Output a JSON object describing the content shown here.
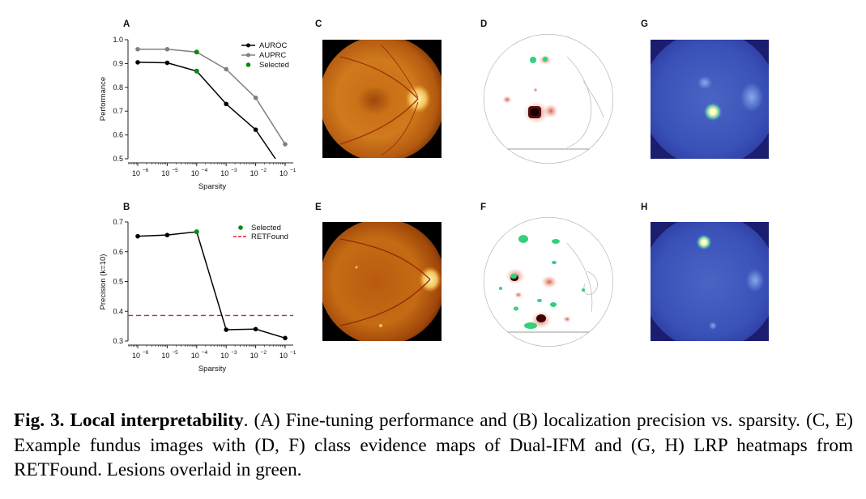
{
  "panel_letters": {
    "A": "A",
    "B": "B",
    "C": "C",
    "D": "D",
    "E": "E",
    "F": "F",
    "G": "G",
    "H": "H"
  },
  "chart_data": [
    {
      "panel": "A",
      "type": "line",
      "xlabel": "Sparsity",
      "ylabel": "Performance",
      "x_scale": "log",
      "x": [
        1e-06,
        1e-05,
        0.0001,
        0.001,
        0.01,
        0.1
      ],
      "x_tick_exponents": [
        "−6",
        "−5",
        "−4",
        "−3",
        "−2",
        "−1"
      ],
      "ylim": [
        0.5,
        1.0
      ],
      "y_ticks": [
        "0.5",
        "0.6",
        "0.7",
        "0.8",
        "0.9",
        "1.0"
      ],
      "series": [
        {
          "name": "AUROC",
          "color": "#000000",
          "values": [
            0.905,
            0.903,
            0.868,
            0.73,
            0.622,
            0.44
          ]
        },
        {
          "name": "AUPRC",
          "color": "#808080",
          "values": [
            0.96,
            0.96,
            0.948,
            0.876,
            0.756,
            0.561
          ]
        }
      ],
      "selected": [
        {
          "x": 0.0001,
          "y": 0.948
        },
        {
          "x": 0.0001,
          "y": 0.868
        }
      ],
      "legend": [
        "AUROC",
        "AUPRC",
        "Selected"
      ],
      "legend_position": "top-right",
      "selected_color": "#0a8a0a"
    },
    {
      "panel": "B",
      "type": "line",
      "xlabel": "Sparsity",
      "ylabel": "Precision (k=10)",
      "x_scale": "log",
      "x": [
        1e-06,
        1e-05,
        0.0001,
        0.001,
        0.01,
        0.1
      ],
      "x_tick_exponents": [
        "−6",
        "−5",
        "−4",
        "−3",
        "−2",
        "−1"
      ],
      "ylim": [
        0.3,
        0.7
      ],
      "y_ticks": [
        "0.3",
        "0.4",
        "0.5",
        "0.6",
        "0.7"
      ],
      "series": [
        {
          "name": "",
          "color": "#000000",
          "values": [
            0.652,
            0.656,
            0.667,
            0.338,
            0.34,
            0.31
          ]
        }
      ],
      "selected": [
        {
          "x": 0.0001,
          "y": 0.667
        }
      ],
      "reference_line": {
        "name": "RETFound",
        "value": 0.386,
        "color": "#e02020"
      },
      "legend": [
        "Selected",
        "RETFound"
      ],
      "legend_position": "top-right",
      "selected_color": "#0a8a0a"
    }
  ],
  "caption": {
    "label": "Fig. 3.",
    "title": "Local interpretability",
    "text": ". (A) Fine-tuning performance and (B) localization precision vs. sparsity. (C, E) Example fundus images with (D, F) class evidence maps of Dual-IFM and (G, H) LRP heatmaps from RETFound. Lesions overlaid in green."
  }
}
